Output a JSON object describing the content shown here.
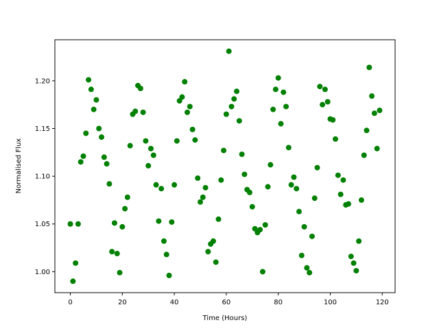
{
  "chart_data": {
    "type": "scatter",
    "x_label": "Time (Hours)",
    "y_label": "Normalised Flux",
    "color": "#008000",
    "x": [
      0,
      1,
      2,
      3,
      4,
      5,
      6,
      7,
      8,
      9,
      10,
      11,
      12,
      13,
      14,
      15,
      16,
      17,
      18,
      19,
      20,
      21,
      22,
      23,
      24,
      25,
      26,
      27,
      28,
      29,
      30,
      31,
      32,
      33,
      34,
      35,
      36,
      37,
      38,
      39,
      40,
      41,
      42,
      43,
      44,
      45,
      46,
      47,
      48,
      49,
      50,
      51,
      52,
      53,
      54,
      55,
      56,
      57,
      58,
      59,
      60,
      61,
      62,
      63,
      64,
      65,
      66,
      67,
      68,
      69,
      70,
      71,
      72,
      73,
      74,
      75,
      76,
      77,
      78,
      79,
      80,
      81,
      82,
      83,
      84,
      85,
      86,
      87,
      88,
      89,
      90,
      91,
      92,
      93,
      94,
      95,
      96,
      97,
      98,
      99,
      100,
      101,
      102,
      103,
      104,
      105,
      106,
      107,
      108,
      109,
      110,
      111,
      112,
      113,
      114,
      115,
      116,
      117,
      118,
      119
    ],
    "values": [
      1.05,
      0.99,
      1.009,
      1.05,
      1.115,
      1.121,
      1.145,
      1.201,
      1.191,
      1.17,
      1.18,
      1.15,
      1.141,
      1.12,
      1.113,
      1.092,
      1.021,
      1.051,
      1.019,
      0.999,
      1.047,
      1.066,
      1.078,
      1.132,
      1.165,
      1.168,
      1.195,
      1.192,
      1.167,
      1.137,
      1.111,
      1.129,
      1.122,
      1.091,
      1.053,
      1.087,
      1.032,
      1.018,
      0.996,
      1.052,
      1.091,
      1.137,
      1.179,
      1.183,
      1.199,
      1.167,
      1.173,
      1.149,
      1.138,
      1.098,
      1.073,
      1.078,
      1.088,
      1.021,
      1.029,
      1.032,
      1.01,
      1.055,
      1.096,
      1.127,
      1.165,
      1.231,
      1.173,
      1.181,
      1.189,
      1.158,
      1.123,
      1.102,
      1.086,
      1.083,
      1.068,
      1.045,
      1.041,
      1.044,
      1.0,
      1.049,
      1.089,
      1.112,
      1.17,
      1.191,
      1.203,
      1.155,
      1.188,
      1.173,
      1.13,
      1.091,
      1.099,
      1.087,
      1.063,
      1.017,
      1.047,
      1.004,
      0.999,
      1.037,
      1.077,
      1.109,
      1.194,
      1.175,
      1.191,
      1.178,
      1.16,
      1.159,
      1.139,
      1.101,
      1.081,
      1.096,
      1.07,
      1.071,
      1.016,
      1.009,
      1.001,
      1.032,
      1.075,
      1.122,
      1.148,
      1.214,
      1.184,
      1.166,
      1.129,
      1.169
    ],
    "xlim": [
      -5.95,
      124.95
    ],
    "ylim": [
      0.978,
      1.243
    ],
    "xticks": [
      0,
      20,
      40,
      60,
      80,
      100,
      120
    ],
    "yticks": [
      {
        "value": 1.0,
        "label": "1.00"
      },
      {
        "value": 1.05,
        "label": "1.05"
      },
      {
        "value": 1.1,
        "label": "1.10"
      },
      {
        "value": 1.15,
        "label": "1.15"
      },
      {
        "value": 1.2,
        "label": "1.20"
      }
    ]
  }
}
